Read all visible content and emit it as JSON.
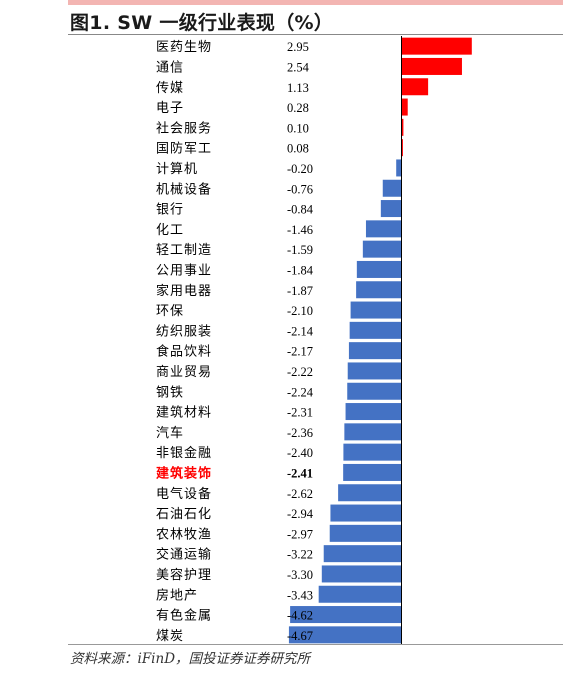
{
  "figure": {
    "title": "图1. SW 一级行业表现（%）",
    "source": "资料来源：iFinD，国投证券证券研究所"
  },
  "chart_data": {
    "type": "bar",
    "orientation": "horizontal",
    "title": "图1. SW 一级行业表现（%）",
    "xlabel": "",
    "ylabel": "",
    "unit": "%",
    "grid": false,
    "legend": "none",
    "highlight_category": "建筑装饰",
    "colors": {
      "positive": "#ff0000",
      "negative": "#4472c4",
      "highlight_label": "#ff0000",
      "axis": "#000000"
    },
    "categories": [
      "医药生物",
      "通信",
      "传媒",
      "电子",
      "社会服务",
      "国防军工",
      "计算机",
      "机械设备",
      "银行",
      "化工",
      "轻工制造",
      "公用事业",
      "家用电器",
      "环保",
      "纺织服装",
      "食品饮料",
      "商业贸易",
      "钢铁",
      "建筑材料",
      "汽车",
      "非银金融",
      "建筑装饰",
      "电气设备",
      "石油石化",
      "农林牧渔",
      "交通运输",
      "美容护理",
      "房地产",
      "有色金属",
      "煤炭"
    ],
    "values": [
      2.95,
      2.54,
      1.13,
      0.28,
      0.1,
      0.08,
      -0.2,
      -0.76,
      -0.84,
      -1.46,
      -1.59,
      -1.84,
      -1.87,
      -2.1,
      -2.14,
      -2.17,
      -2.22,
      -2.24,
      -2.31,
      -2.36,
      -2.4,
      -2.41,
      -2.62,
      -2.94,
      -2.97,
      -3.22,
      -3.3,
      -3.43,
      -4.62,
      -4.67
    ],
    "value_labels": [
      "2.95",
      "2.54",
      "1.13",
      "0.28",
      "0.10",
      "0.08",
      "-0.20",
      "-0.76",
      "-0.84",
      "-1.46",
      "-1.59",
      "-1.84",
      "-1.87",
      "-2.10",
      "-2.14",
      "-2.17",
      "-2.22",
      "-2.24",
      "-2.31",
      "-2.36",
      "-2.40",
      "-2.41",
      "-2.62",
      "-2.94",
      "-2.97",
      "-3.22",
      "-3.30",
      "-3.43",
      "-4.62",
      "-4.67"
    ]
  }
}
